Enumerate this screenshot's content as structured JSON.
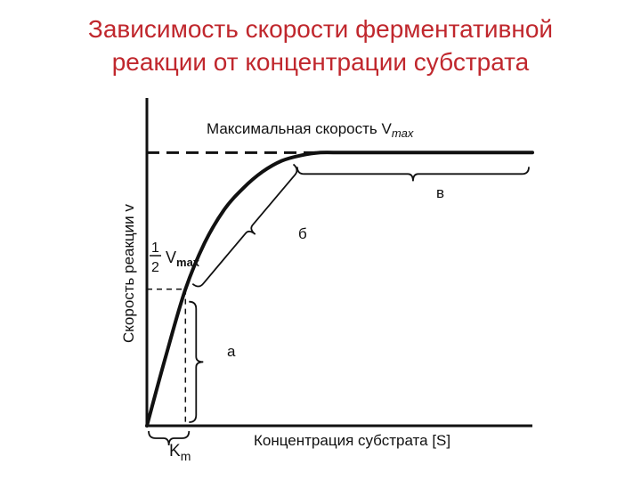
{
  "slide": {
    "title_line1": "Зависимость скорости ферментативной",
    "title_line2": "реакции от концентрации субстрата"
  },
  "chart_data": {
    "type": "line",
    "title": "",
    "xlabel": "Концентрация субстрата [S]",
    "ylabel": "Скорость реакции v",
    "xlim": [
      0,
      10
    ],
    "ylim": [
      0,
      1.2
    ],
    "grid": false,
    "legend": "none",
    "series": [
      {
        "x": [
          0,
          0.5,
          1,
          1.5,
          2,
          2.5,
          3,
          3.5,
          4,
          4.5,
          5,
          5.5,
          6,
          6.5,
          7,
          7.5,
          8,
          8.5,
          9,
          9.5,
          10
        ],
        "y": [
          0,
          0.26,
          0.5,
          0.67,
          0.79,
          0.87,
          0.93,
          0.97,
          0.99,
          1.0,
          1.0,
          1.0,
          1.0,
          1.0,
          1.0,
          1.0,
          1.0,
          1.0,
          1.0,
          1.0,
          1.0
        ]
      }
    ],
    "vmax_value": 1.0,
    "half_vmax_value": 0.5,
    "km_value": 1.0,
    "annotations": {
      "vmax_label": "Максимальная скорость V",
      "vmax_sub": "max",
      "half_num": "1",
      "half_den": "2",
      "half_v": "V",
      "half_sub": "max",
      "region_a": "а",
      "region_b": "б",
      "region_c": "в",
      "km_k": "K",
      "km_sub": "m"
    }
  }
}
